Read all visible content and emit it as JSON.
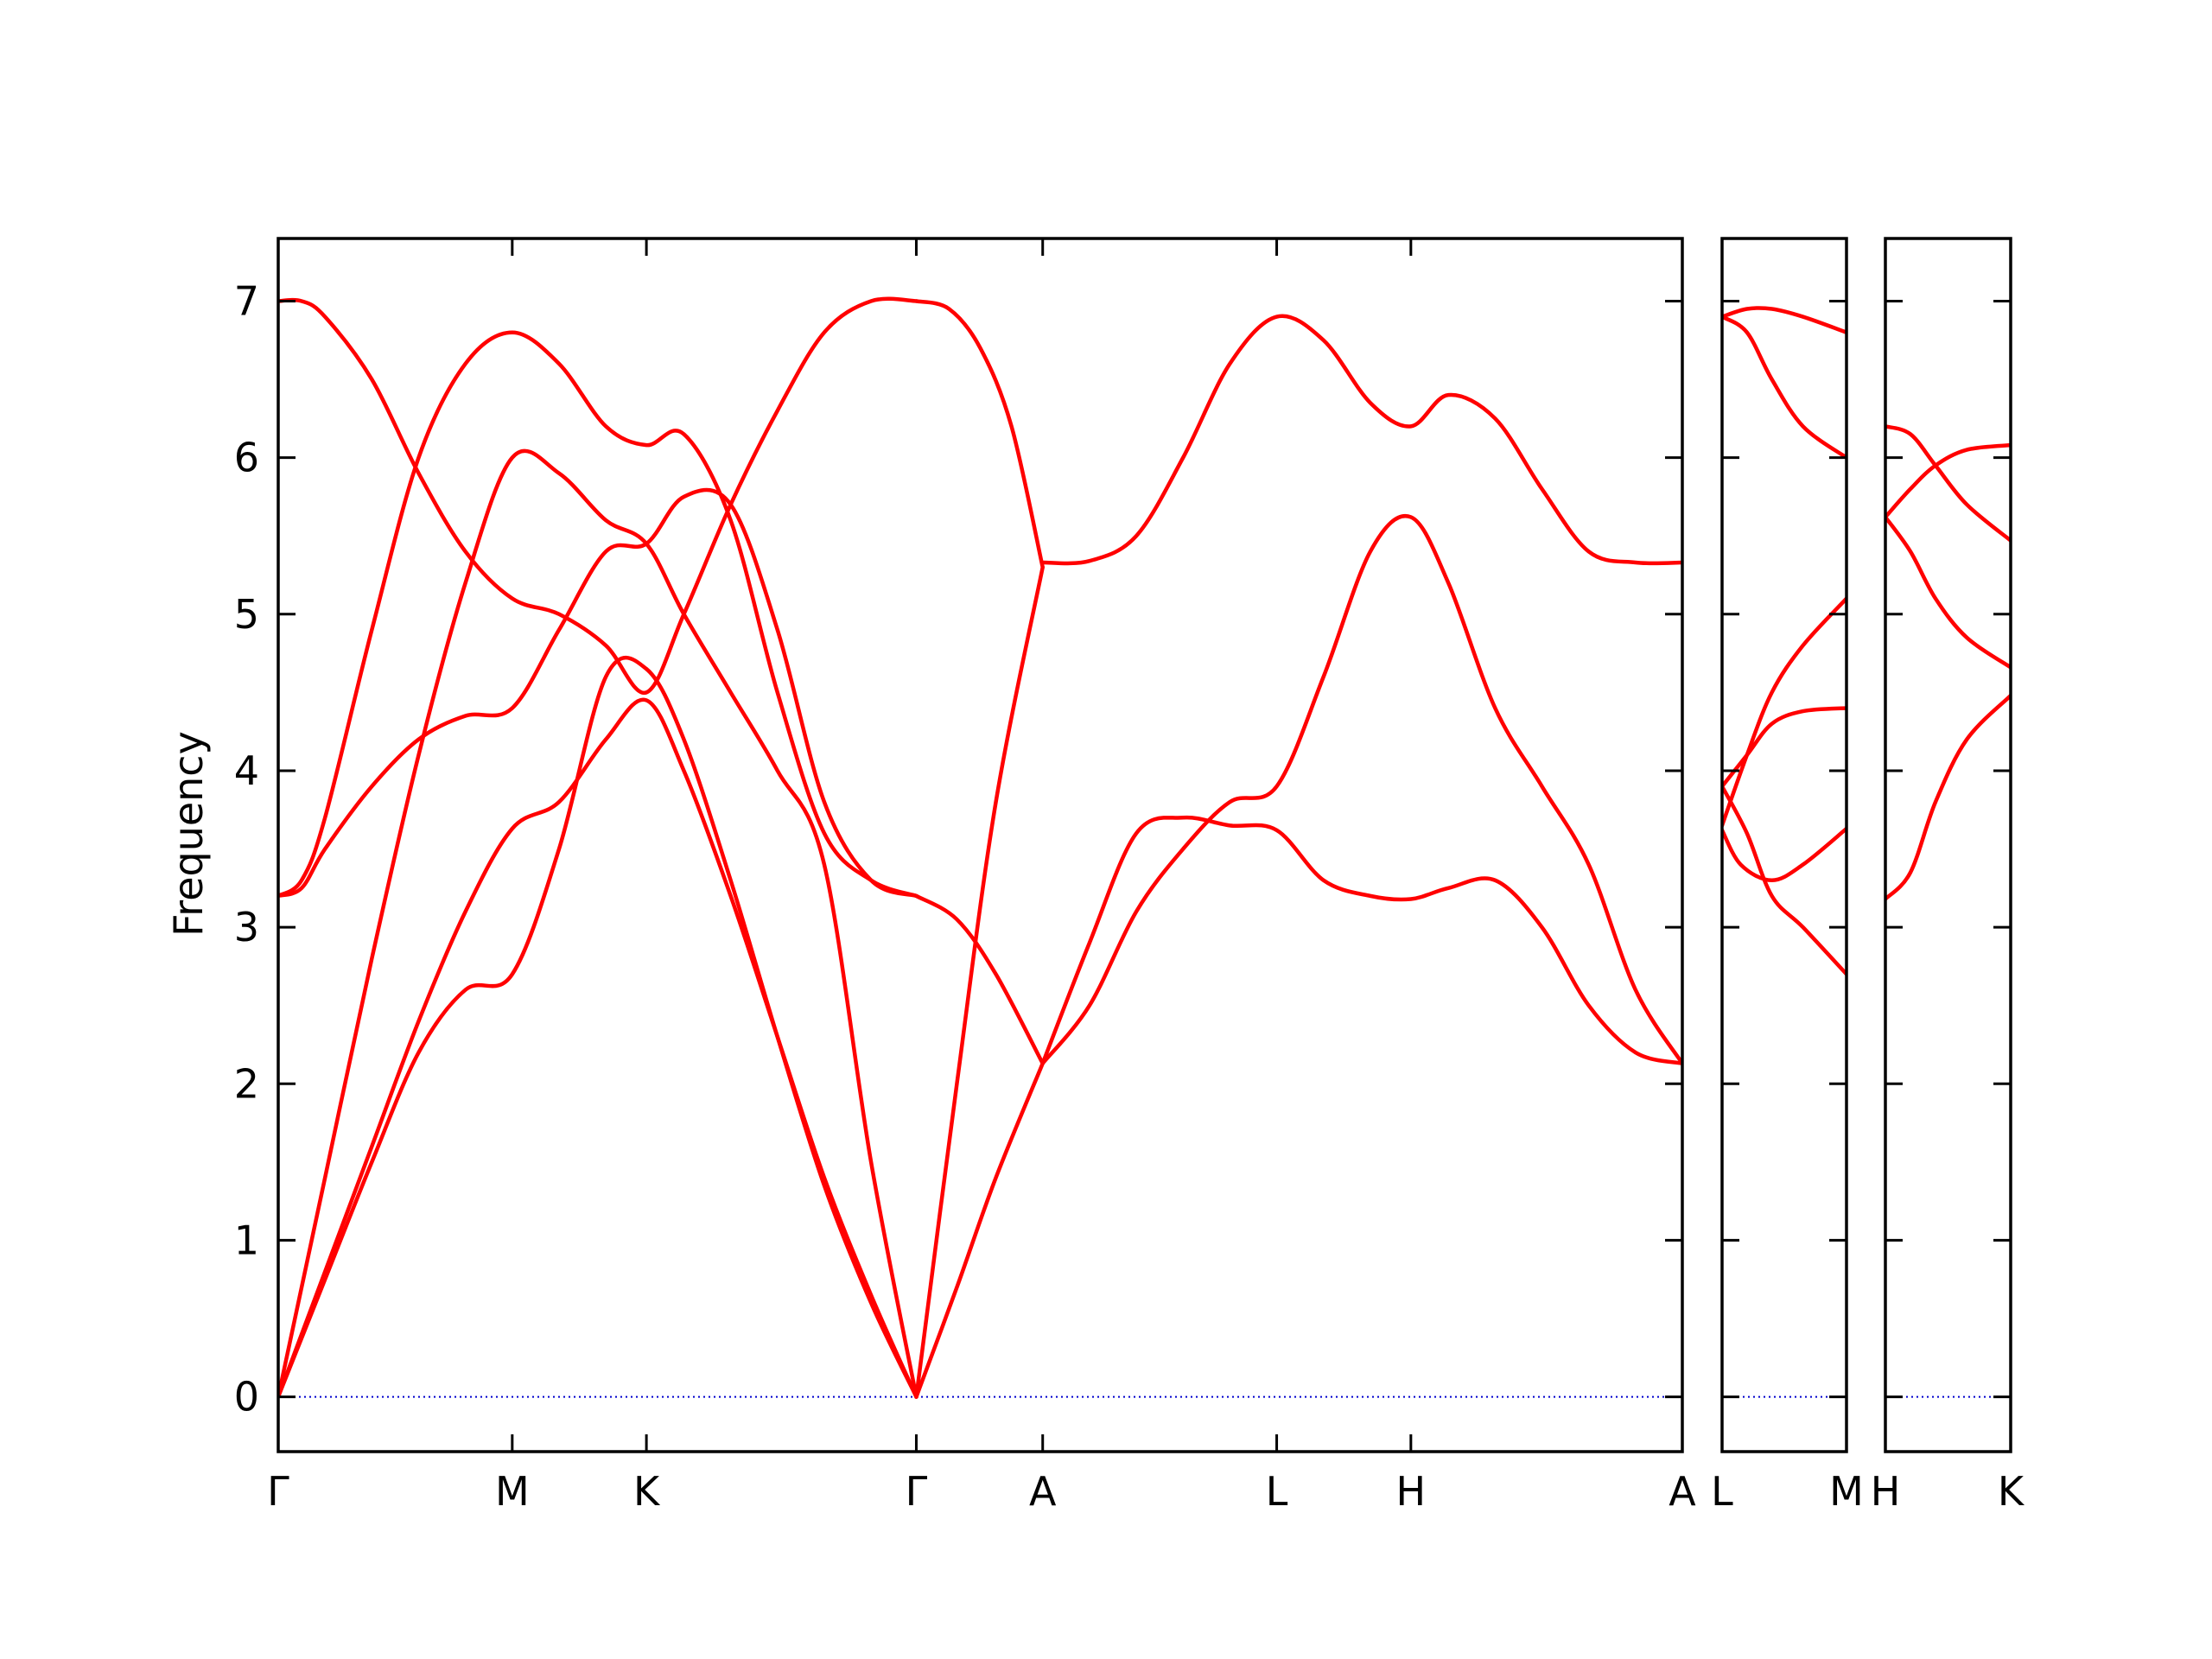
{
  "chart_data": {
    "type": "line",
    "title": "",
    "xlabel": "",
    "ylabel": "Frequency",
    "ylim": [
      -0.35,
      7.4
    ],
    "yticks": [
      0,
      1,
      2,
      3,
      4,
      5,
      6,
      7
    ],
    "grid": false,
    "legend": "none",
    "band_color": "#ff0000",
    "zero_line_color": "#0000cc",
    "panels": [
      {
        "xlim": [
          0,
          9
        ],
        "ticks": [
          {
            "x": 0,
            "label": "Γ"
          },
          {
            "x": 1.5,
            "label": "M"
          },
          {
            "x": 2.36,
            "label": "K"
          },
          {
            "x": 4.09,
            "label": "Γ"
          },
          {
            "x": 4.9,
            "label": "A"
          },
          {
            "x": 6.4,
            "label": "L"
          },
          {
            "x": 7.26,
            "label": "H"
          },
          {
            "x": 9,
            "label": "A"
          }
        ],
        "bands": [
          {
            "x": [
              0,
              0.3,
              0.6,
              0.9,
              1.2,
              1.5,
              1.8,
              2.1,
              2.36,
              2.6,
              2.9,
              3.2,
              3.5,
              3.8,
              4.09
            ],
            "y": [
              0,
              0.75,
              1.5,
              2.2,
              2.6,
              2.7,
              3.5,
              4.6,
              4.65,
              4.2,
              3.3,
              2.3,
              1.35,
              0.6,
              0
            ]
          },
          {
            "x": [
              0,
              0.3,
              0.6,
              0.9,
              1.2,
              1.5,
              1.8,
              2.1,
              2.36,
              2.6,
              2.9,
              3.2,
              3.5,
              3.8,
              4.09
            ],
            "y": [
              0,
              0.8,
              1.6,
              2.4,
              3.1,
              3.63,
              3.8,
              4.2,
              4.45,
              4.0,
              3.2,
              2.3,
              1.4,
              0.65,
              0
            ]
          },
          {
            "x": [
              0,
              0.3,
              0.6,
              0.9,
              1.2,
              1.5,
              1.8,
              2.1,
              2.36,
              2.6,
              2.9,
              3.2,
              3.5,
              3.8,
              4.09
            ],
            "y": [
              0,
              1.4,
              2.8,
              4.1,
              5.2,
              6.0,
              5.9,
              5.6,
              5.45,
              5.0,
              4.5,
              4.0,
              3.4,
              1.5,
              0
            ]
          },
          {
            "x": [
              0,
              0.15,
              0.3,
              0.6,
              0.9,
              1.2,
              1.5,
              1.8,
              2.1,
              2.36,
              2.6,
              2.9,
              3.2,
              3.5,
              3.8,
              4.09
            ],
            "y": [
              3.2,
              3.25,
              3.5,
              3.9,
              4.2,
              4.35,
              4.4,
              4.9,
              5.4,
              5.45,
              5.75,
              5.7,
              4.9,
              3.8,
              3.3,
              3.2
            ]
          },
          {
            "x": [
              0,
              0.15,
              0.3,
              0.6,
              0.9,
              1.2,
              1.5,
              1.8,
              2.1,
              2.36,
              2.6,
              2.9,
              3.2,
              3.5,
              3.8,
              4.09
            ],
            "y": [
              3.2,
              3.3,
              3.7,
              4.9,
              6.0,
              6.6,
              6.8,
              6.6,
              6.2,
              6.08,
              6.15,
              5.6,
              4.5,
              3.6,
              3.3,
              3.2
            ]
          },
          {
            "x": [
              0,
              0.15,
              0.3,
              0.6,
              0.9,
              1.2,
              1.5,
              1.8,
              2.1,
              2.36,
              2.6,
              2.9,
              3.2,
              3.5,
              3.8,
              4.09
            ],
            "y": [
              7.0,
              7.0,
              6.9,
              6.5,
              5.9,
              5.4,
              5.1,
              5.0,
              4.8,
              4.5,
              5.0,
              5.7,
              6.3,
              6.8,
              7.0,
              7.0
            ]
          },
          {
            "x": [
              4.09,
              4.35,
              4.6,
              4.9
            ],
            "y": [
              0,
              0.7,
              1.4,
              2.13
            ]
          },
          {
            "x": [
              4.09,
              4.35,
              4.6,
              4.9
            ],
            "y": [
              3.2,
              3.05,
              2.7,
              2.13
            ]
          },
          {
            "x": [
              4.09,
              4.35,
              4.6,
              4.9
            ],
            "y": [
              0,
              2.0,
              3.8,
              5.3
            ]
          },
          {
            "x": [
              4.09,
              4.3,
              4.5,
              4.7,
              4.9
            ],
            "y": [
              7.0,
              6.95,
              6.7,
              6.2,
              5.3
            ]
          },
          {
            "x": [
              4.9,
              5.2,
              5.5,
              5.8,
              6.1,
              6.4,
              6.7,
              7.0,
              7.26,
              7.5,
              7.8,
              8.1,
              8.4,
              8.7,
              9.0
            ],
            "y": [
              2.13,
              2.9,
              3.6,
              3.7,
              3.65,
              3.62,
              3.3,
              3.2,
              3.18,
              3.25,
              3.3,
              3.0,
              2.5,
              2.2,
              2.13
            ]
          },
          {
            "x": [
              4.9,
              5.2,
              5.5,
              5.8,
              6.1,
              6.4,
              6.7,
              7.0,
              7.26,
              7.5,
              7.8,
              8.1,
              8.4,
              8.7,
              9.0
            ],
            "y": [
              2.13,
              2.5,
              3.1,
              3.5,
              3.8,
              3.9,
              4.6,
              5.4,
              5.62,
              5.2,
              4.4,
              3.9,
              3.4,
              2.6,
              2.13
            ]
          },
          {
            "x": [
              4.9,
              5.2,
              5.5,
              5.8,
              6.1,
              6.4,
              6.7,
              7.0,
              7.26,
              7.5,
              7.8,
              8.1,
              8.4,
              8.7,
              9.0
            ],
            "y": [
              5.33,
              5.34,
              5.5,
              6.0,
              6.6,
              6.9,
              6.75,
              6.35,
              6.2,
              6.4,
              6.25,
              5.8,
              5.4,
              5.33,
              5.33
            ]
          }
        ]
      },
      {
        "xlim": [
          0,
          1
        ],
        "ticks": [
          {
            "x": 0,
            "label": "L"
          },
          {
            "x": 1,
            "label": "M"
          }
        ],
        "bands": [
          {
            "x": [
              0,
              0.15,
              0.4,
              0.65,
              1.0
            ],
            "y": [
              3.62,
              3.4,
              3.3,
              3.4,
              3.63
            ]
          },
          {
            "x": [
              0,
              0.2,
              0.4,
              0.65,
              1.0
            ],
            "y": [
              3.9,
              3.6,
              3.2,
              3.0,
              2.7
            ]
          },
          {
            "x": [
              0,
              0.2,
              0.4,
              0.65,
              1.0
            ],
            "y": [
              3.65,
              4.1,
              4.5,
              4.8,
              5.1
            ]
          },
          {
            "x": [
              0,
              0.2,
              0.4,
              0.65,
              1.0
            ],
            "y": [
              3.9,
              4.1,
              4.3,
              4.38,
              4.4
            ]
          },
          {
            "x": [
              0,
              0.2,
              0.4,
              0.65,
              1.0
            ],
            "y": [
              6.9,
              6.95,
              6.95,
              6.9,
              6.8
            ]
          },
          {
            "x": [
              0,
              0.2,
              0.4,
              0.65,
              1.0
            ],
            "y": [
              6.9,
              6.8,
              6.5,
              6.2,
              6.0
            ]
          }
        ]
      },
      {
        "xlim": [
          0,
          1
        ],
        "ticks": [
          {
            "x": 0,
            "label": "H"
          },
          {
            "x": 1,
            "label": "K"
          }
        ],
        "bands": [
          {
            "x": [
              0,
              0.2,
              0.4,
              0.65,
              1.0
            ],
            "y": [
              3.18,
              3.35,
              3.8,
              4.2,
              4.48
            ]
          },
          {
            "x": [
              0,
              0.2,
              0.4,
              0.65,
              1.0
            ],
            "y": [
              5.62,
              5.4,
              5.1,
              4.85,
              4.66
            ]
          },
          {
            "x": [
              0,
              0.2,
              0.4,
              0.65,
              1.0
            ],
            "y": [
              5.62,
              5.8,
              5.95,
              6.05,
              6.08
            ]
          },
          {
            "x": [
              0,
              0.2,
              0.4,
              0.65,
              1.0
            ],
            "y": [
              6.2,
              6.15,
              5.95,
              5.7,
              5.47
            ]
          }
        ]
      }
    ]
  }
}
